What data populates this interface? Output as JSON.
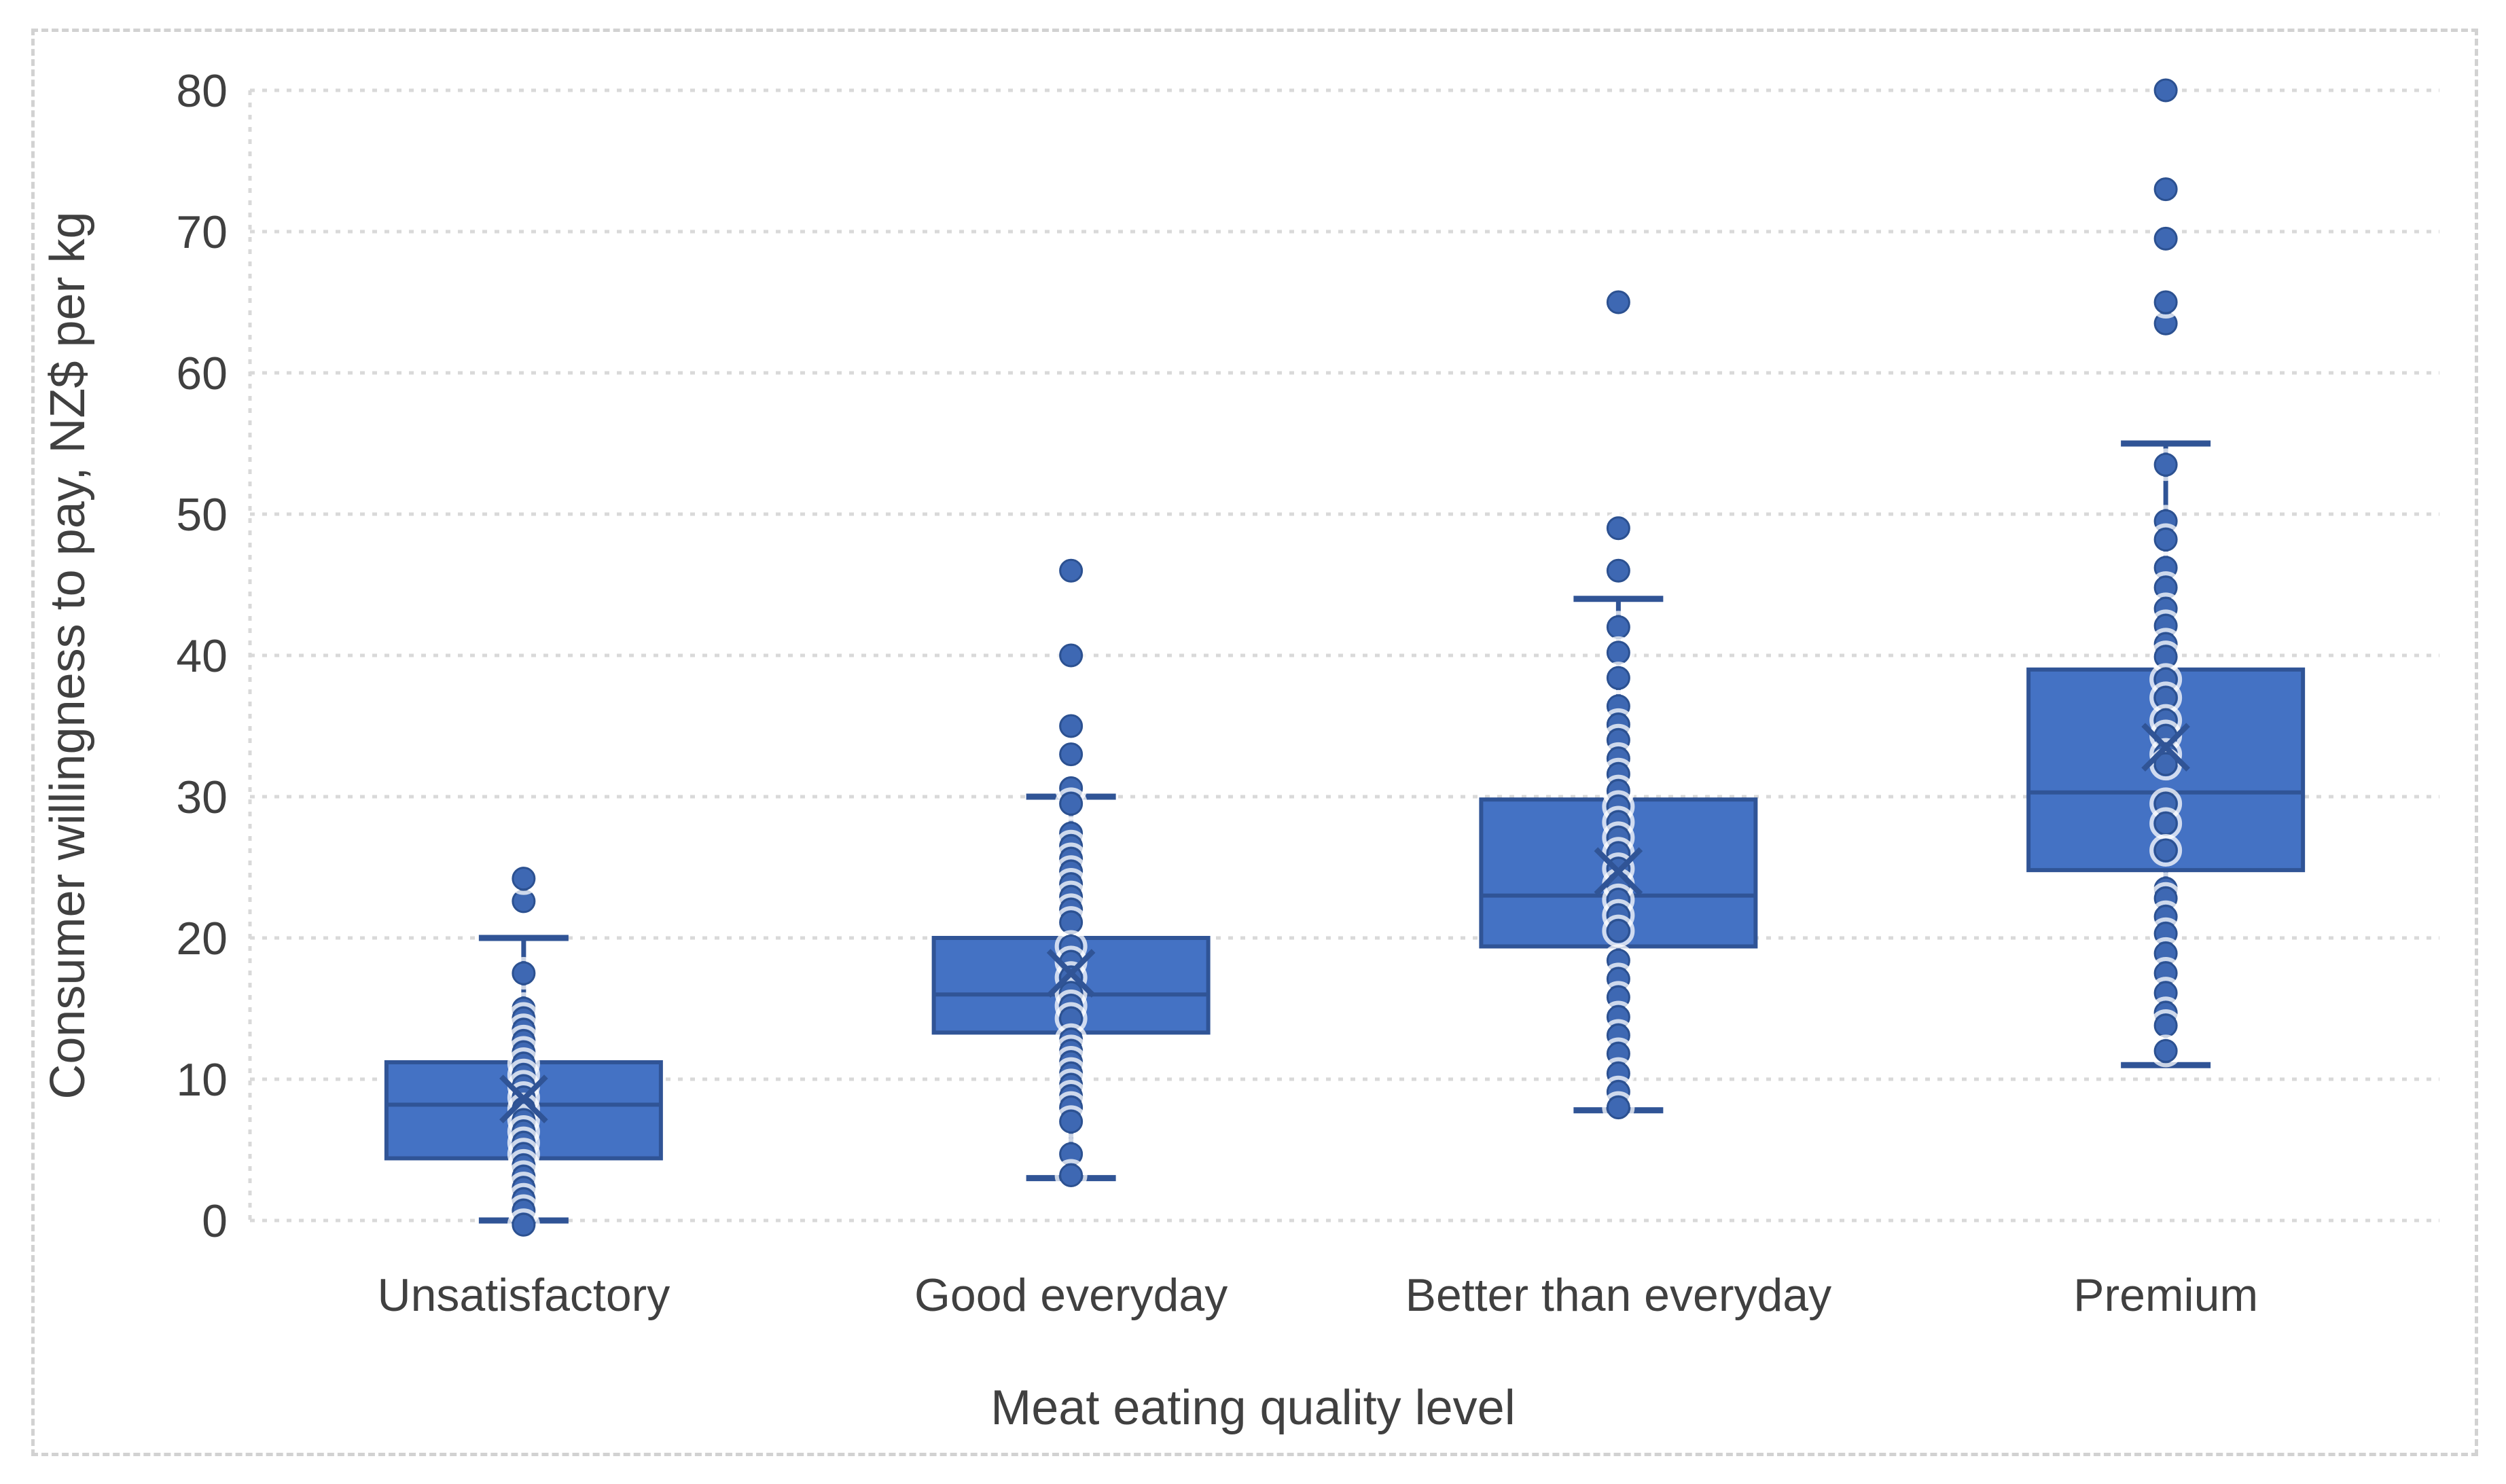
{
  "chart": {
    "background": "#ffffff",
    "border_color": "#d2d2d2",
    "colors": {
      "box_fill": "#4472c4",
      "box_border": "#305496",
      "whisker": "#305496",
      "median": "#305496",
      "mean_marker": "#305496",
      "point_fill": "#3e68b3",
      "point_border": "#2c5191",
      "gridline": "#d9d9d9",
      "text": "#404040"
    },
    "x_axis": {
      "title": "Meat eating quality level"
    },
    "y_axis": {
      "title": "Consumer willingness to pay, NZ$ per kg",
      "tick_labels": [
        "0",
        "10",
        "20",
        "30",
        "40",
        "50",
        "60",
        "70",
        "80"
      ],
      "tick_values": [
        0,
        10,
        20,
        30,
        40,
        50,
        60,
        70,
        80
      ]
    }
  },
  "chart_data": {
    "type": "boxplot",
    "title": "",
    "xlabel": "Meat eating quality level",
    "ylabel": "Consumer willingness to pay, NZ$ per kg",
    "ylim": [
      0,
      80
    ],
    "grid": true,
    "legend": false,
    "categories": [
      "Unsatisfactory",
      "Good everyday",
      "Better than everyday",
      "Premium"
    ],
    "boxes": [
      {
        "category": "Unsatisfactory",
        "whisker_low": 0,
        "q1": 4.4,
        "median": 8.2,
        "q3": 11.2,
        "whisker_high": 20,
        "mean": 8.6,
        "outliers": [
          22.6,
          24.2
        ],
        "points": [
          17.5,
          15.0,
          14.3,
          13.5,
          12.7,
          11.9,
          11.1,
          10.3,
          9.5,
          8.7,
          7.9,
          7.1,
          6.3,
          5.5,
          4.7,
          3.9,
          3.1,
          2.3,
          1.5,
          0.7,
          -0.3
        ]
      },
      {
        "category": "Good everyday",
        "whisker_low": 3,
        "q1": 13.3,
        "median": 16,
        "q3": 20,
        "whisker_high": 30,
        "mean": 17.5,
        "outliers": [
          33,
          35,
          40,
          46
        ],
        "points": [
          30.6,
          29.5,
          27.4,
          26.5,
          25.6,
          24.7,
          23.8,
          22.9,
          22.0,
          21.1,
          19.4,
          18.3,
          17.2,
          16.1,
          15.2,
          14.3,
          12.8,
          12.0,
          11.2,
          10.4,
          9.6,
          8.8,
          8.0,
          7.0,
          4.7,
          3.2
        ]
      },
      {
        "category": "Better than everyday",
        "whisker_low": 7.8,
        "q1": 19.4,
        "median": 23,
        "q3": 29.8,
        "whisker_high": 44,
        "mean": 24.7,
        "outliers": [
          46,
          49,
          65
        ],
        "points": [
          42.0,
          40.2,
          38.4,
          36.4,
          35.1,
          34.0,
          32.7,
          31.6,
          30.4,
          29.3,
          28.2,
          27.1,
          26.0,
          24.9,
          23.8,
          22.7,
          21.6,
          20.5,
          18.4,
          17.1,
          15.8,
          14.4,
          13.1,
          11.8,
          10.4,
          9.1,
          8.0
        ]
      },
      {
        "category": "Premium",
        "whisker_low": 11,
        "q1": 24.8,
        "median": 30.3,
        "q3": 39,
        "whisker_high": 55,
        "mean": 33.5,
        "outliers": [
          63.5,
          65,
          69.5,
          73,
          80
        ],
        "points": [
          53.5,
          49.5,
          48.2,
          46.2,
          44.8,
          43.3,
          42.1,
          40.8,
          39.9,
          38.3,
          37.0,
          35.4,
          34.3,
          33.0,
          32.3,
          29.5,
          28.1,
          26.2,
          23.5,
          22.8,
          21.5,
          20.3,
          18.9,
          17.5,
          16.1,
          14.7,
          13.8,
          12.0
        ]
      }
    ]
  }
}
